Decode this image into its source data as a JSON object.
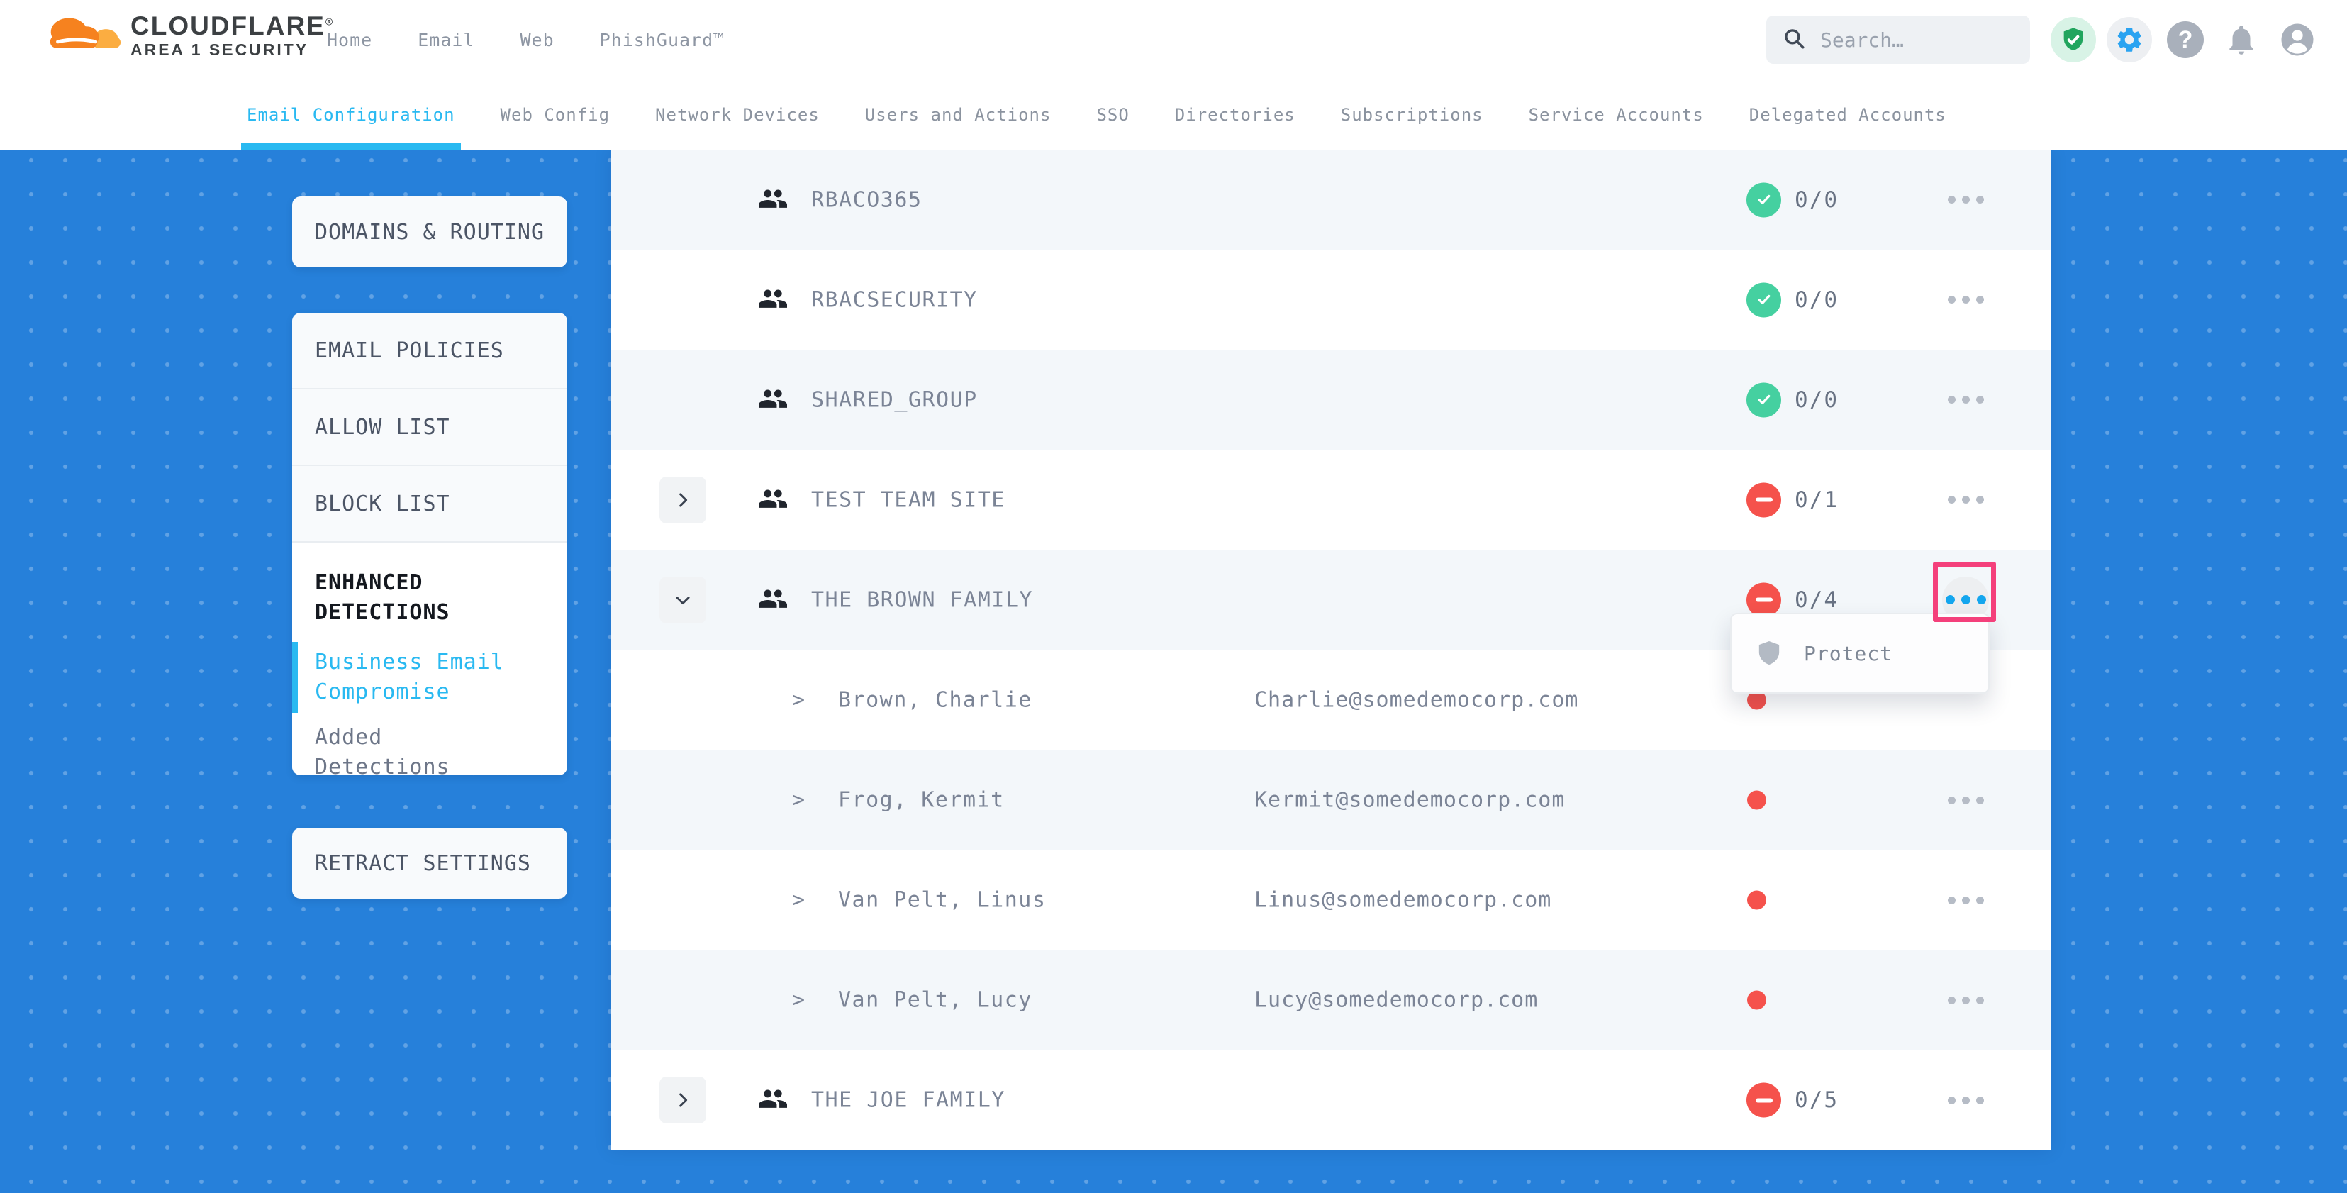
{
  "header": {
    "brand": "CLOUDFLARE",
    "brand_mark": "®",
    "brand_sub": "AREA 1 SECURITY",
    "nav": [
      "Home",
      "Email",
      "Web",
      "PhishGuard™"
    ],
    "search_placeholder": "Search…",
    "icons": [
      "shield-check-icon",
      "settings-gear-icon",
      "help-icon",
      "bell-icon",
      "account-icon"
    ]
  },
  "tabs": [
    {
      "label": "Email Configuration",
      "active": true
    },
    {
      "label": "Web Config",
      "active": false
    },
    {
      "label": "Network Devices",
      "active": false
    },
    {
      "label": "Users and Actions",
      "active": false
    },
    {
      "label": "SSO",
      "active": false
    },
    {
      "label": "Directories",
      "active": false
    },
    {
      "label": "Subscriptions",
      "active": false
    },
    {
      "label": "Service Accounts",
      "active": false
    },
    {
      "label": "Delegated Accounts",
      "active": false
    }
  ],
  "sidebar": {
    "card_domains": "DOMAINS & ROUTING",
    "policies": [
      "EMAIL POLICIES",
      "ALLOW LIST",
      "BLOCK LIST"
    ],
    "enhanced_title": "ENHANCED DETECTIONS",
    "enhanced_items": [
      {
        "label": "Business Email Compromise",
        "active": true
      },
      {
        "label": "Added Detections",
        "active": false
      }
    ],
    "card_retract": "RETRACT SETTINGS"
  },
  "table": {
    "rows": [
      {
        "kind": "group",
        "expand": null,
        "name": "RBACO365",
        "status": "protected",
        "count": "0/0",
        "menu": "gray"
      },
      {
        "kind": "group",
        "expand": null,
        "name": "RBACSECURITY",
        "status": "protected",
        "count": "0/0",
        "menu": "gray"
      },
      {
        "kind": "group",
        "expand": null,
        "name": "SHARED_GROUP",
        "status": "protected",
        "count": "0/0",
        "menu": "gray"
      },
      {
        "kind": "group",
        "expand": "collapsed",
        "name": "TEST TEAM SITE",
        "status": "unprotected",
        "count": "0/1",
        "menu": "gray"
      },
      {
        "kind": "group",
        "expand": "expanded",
        "name": "THE BROWN FAMILY",
        "status": "unprotected",
        "count": "0/4",
        "menu": "highlighted"
      },
      {
        "kind": "member",
        "name": "Brown, Charlie",
        "email": "Charlie@somedemocorp.com",
        "status": "alert-dot",
        "menu": "none"
      },
      {
        "kind": "member",
        "name": "Frog, Kermit",
        "email": "Kermit@somedemocorp.com",
        "status": "alert-dot",
        "menu": "gray"
      },
      {
        "kind": "member",
        "name": "Van Pelt, Linus",
        "email": "Linus@somedemocorp.com",
        "status": "alert-dot",
        "menu": "gray"
      },
      {
        "kind": "member",
        "name": "Van Pelt, Lucy",
        "email": "Lucy@somedemocorp.com",
        "status": "alert-dot",
        "menu": "gray"
      },
      {
        "kind": "group",
        "expand": "collapsed",
        "name": "THE JOE FAMILY",
        "status": "unprotected",
        "count": "0/5",
        "menu": "gray"
      }
    ]
  },
  "popup": {
    "icon": "shield-icon",
    "label": "Protect"
  },
  "colors": {
    "background_blue": "#2680da",
    "accent_cyan": "#29b9f1",
    "status_green": "#45d0a0",
    "status_red": "#f5524c",
    "highlight_pink": "#f4407b",
    "menu_blue_dots": "#14a6ee",
    "logo_orange": "#f6821f",
    "logo_light_orange": "#fbad41"
  }
}
